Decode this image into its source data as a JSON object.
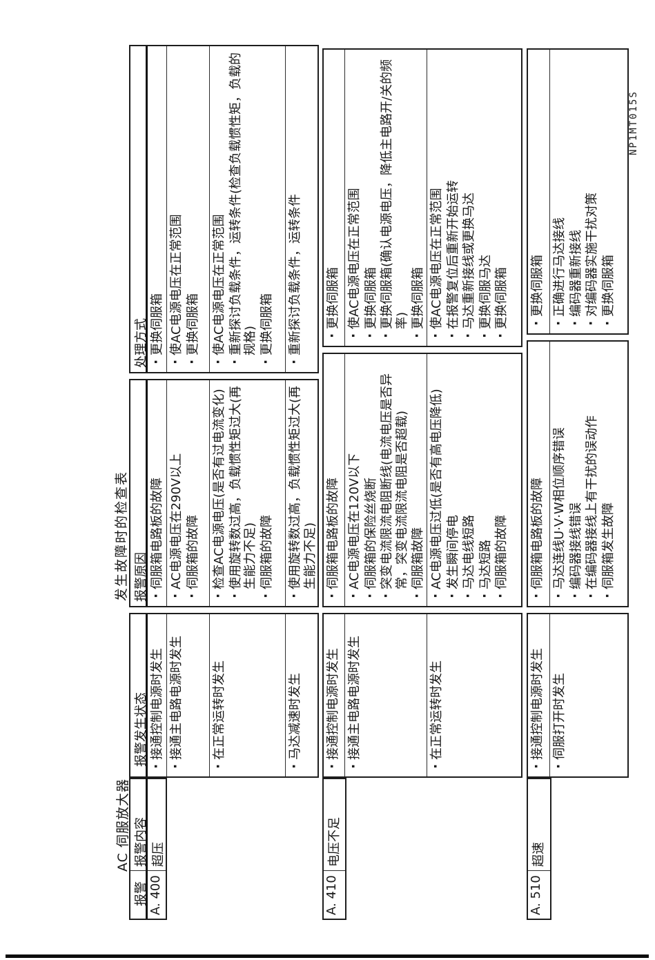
{
  "page": {
    "product_label": "AC 伺服放大器",
    "table_title": "发生故障时的检查表",
    "figure_id": "NP1MT015S",
    "ink_color": "#1a1a1a"
  },
  "column_headers": {
    "alarm": "报警",
    "content": "报警内容",
    "status": "报警发生状态",
    "cause": "报警原因",
    "remedy": "处理方式"
  },
  "alarm_blocks": [
    {
      "code": "A. 400",
      "content": "超压",
      "rows": [
        {
          "status": "接通控制电源时发生",
          "causes": [
            "伺服箱电路板的故障"
          ],
          "remedies": [
            "更换伺服箱"
          ]
        },
        {
          "status": "接通主电路电源时发生",
          "causes": [
            "AC电源电压在290V以上",
            "伺服箱的故障"
          ],
          "remedies": [
            "使AC电源电压在正常范围",
            "更换伺服箱"
          ]
        },
        {
          "status": "在正常运转时发生",
          "causes": [
            "检查AC电源电压(是否有过电流变化)",
            "使用旋转数过高，负载惯性矩过大(再生能力不足)",
            "伺服箱的故障"
          ],
          "remedies": [
            "使AC电源电压在正常范围",
            "重新探讨负载条件，运转条件(检查负载惯性矩，负载的规格)",
            "更换伺服箱"
          ]
        },
        {
          "status": "马达减速时发生",
          "causes": [
            "使用旋转数过高，负载惯性矩过大(再生能力不足)"
          ],
          "remedies": [
            "重新探讨负载条件，运转条件"
          ]
        }
      ]
    },
    {
      "code": "A. 410",
      "content": "电压不足",
      "rows": [
        {
          "status": "接通控制电源时发生",
          "causes": [
            "伺服箱电路板的故障"
          ],
          "remedies": [
            "更换伺服箱"
          ]
        },
        {
          "status": "接通主电路电源时发生",
          "causes": [
            "AC电源电压在120V以下",
            "伺服箱的保险丝烧断",
            "突变电流限流电阻断线(电流电压是否异常，突变电流限流电阻是否超载)",
            "伺服箱故障"
          ],
          "remedies": [
            "使AC电源电压在正常范围",
            "更换伺服箱",
            "更换伺服箱(确认电源电压，降低主电路开/关的频率)",
            "更换伺服箱"
          ]
        },
        {
          "status": "在正常运转时发生",
          "causes": [
            "AC电源电压过低(是否有高电压降低)",
            "发生瞬间停电",
            "马达电线短路",
            "马达短路",
            "伺服箱的故障"
          ],
          "remedies": [
            "使AC电源电压在正常范围",
            "在报警复位后重新开始运转",
            "马达重新接线或更换马达",
            "更换伺服马达",
            "更换伺服箱"
          ]
        }
      ]
    },
    {
      "code": "A. 510",
      "content": "超速",
      "rows": [
        {
          "status": "接通控制电源时发生",
          "causes": [
            "伺服箱电路板的故障"
          ],
          "remedies": [
            "更换伺服箱"
          ]
        },
        {
          "status": "伺服打开时发生",
          "causes": [
            "马达连线U·V·W相位顺序错误",
            "编码器接线错误",
            "在编码器接线上有干扰的误动作",
            "伺服箱发生故障"
          ],
          "remedies": [
            "正确进行马达接线",
            "编码器重新接线",
            "对编码器实施干扰对策",
            "更换伺服箱"
          ]
        }
      ]
    }
  ]
}
